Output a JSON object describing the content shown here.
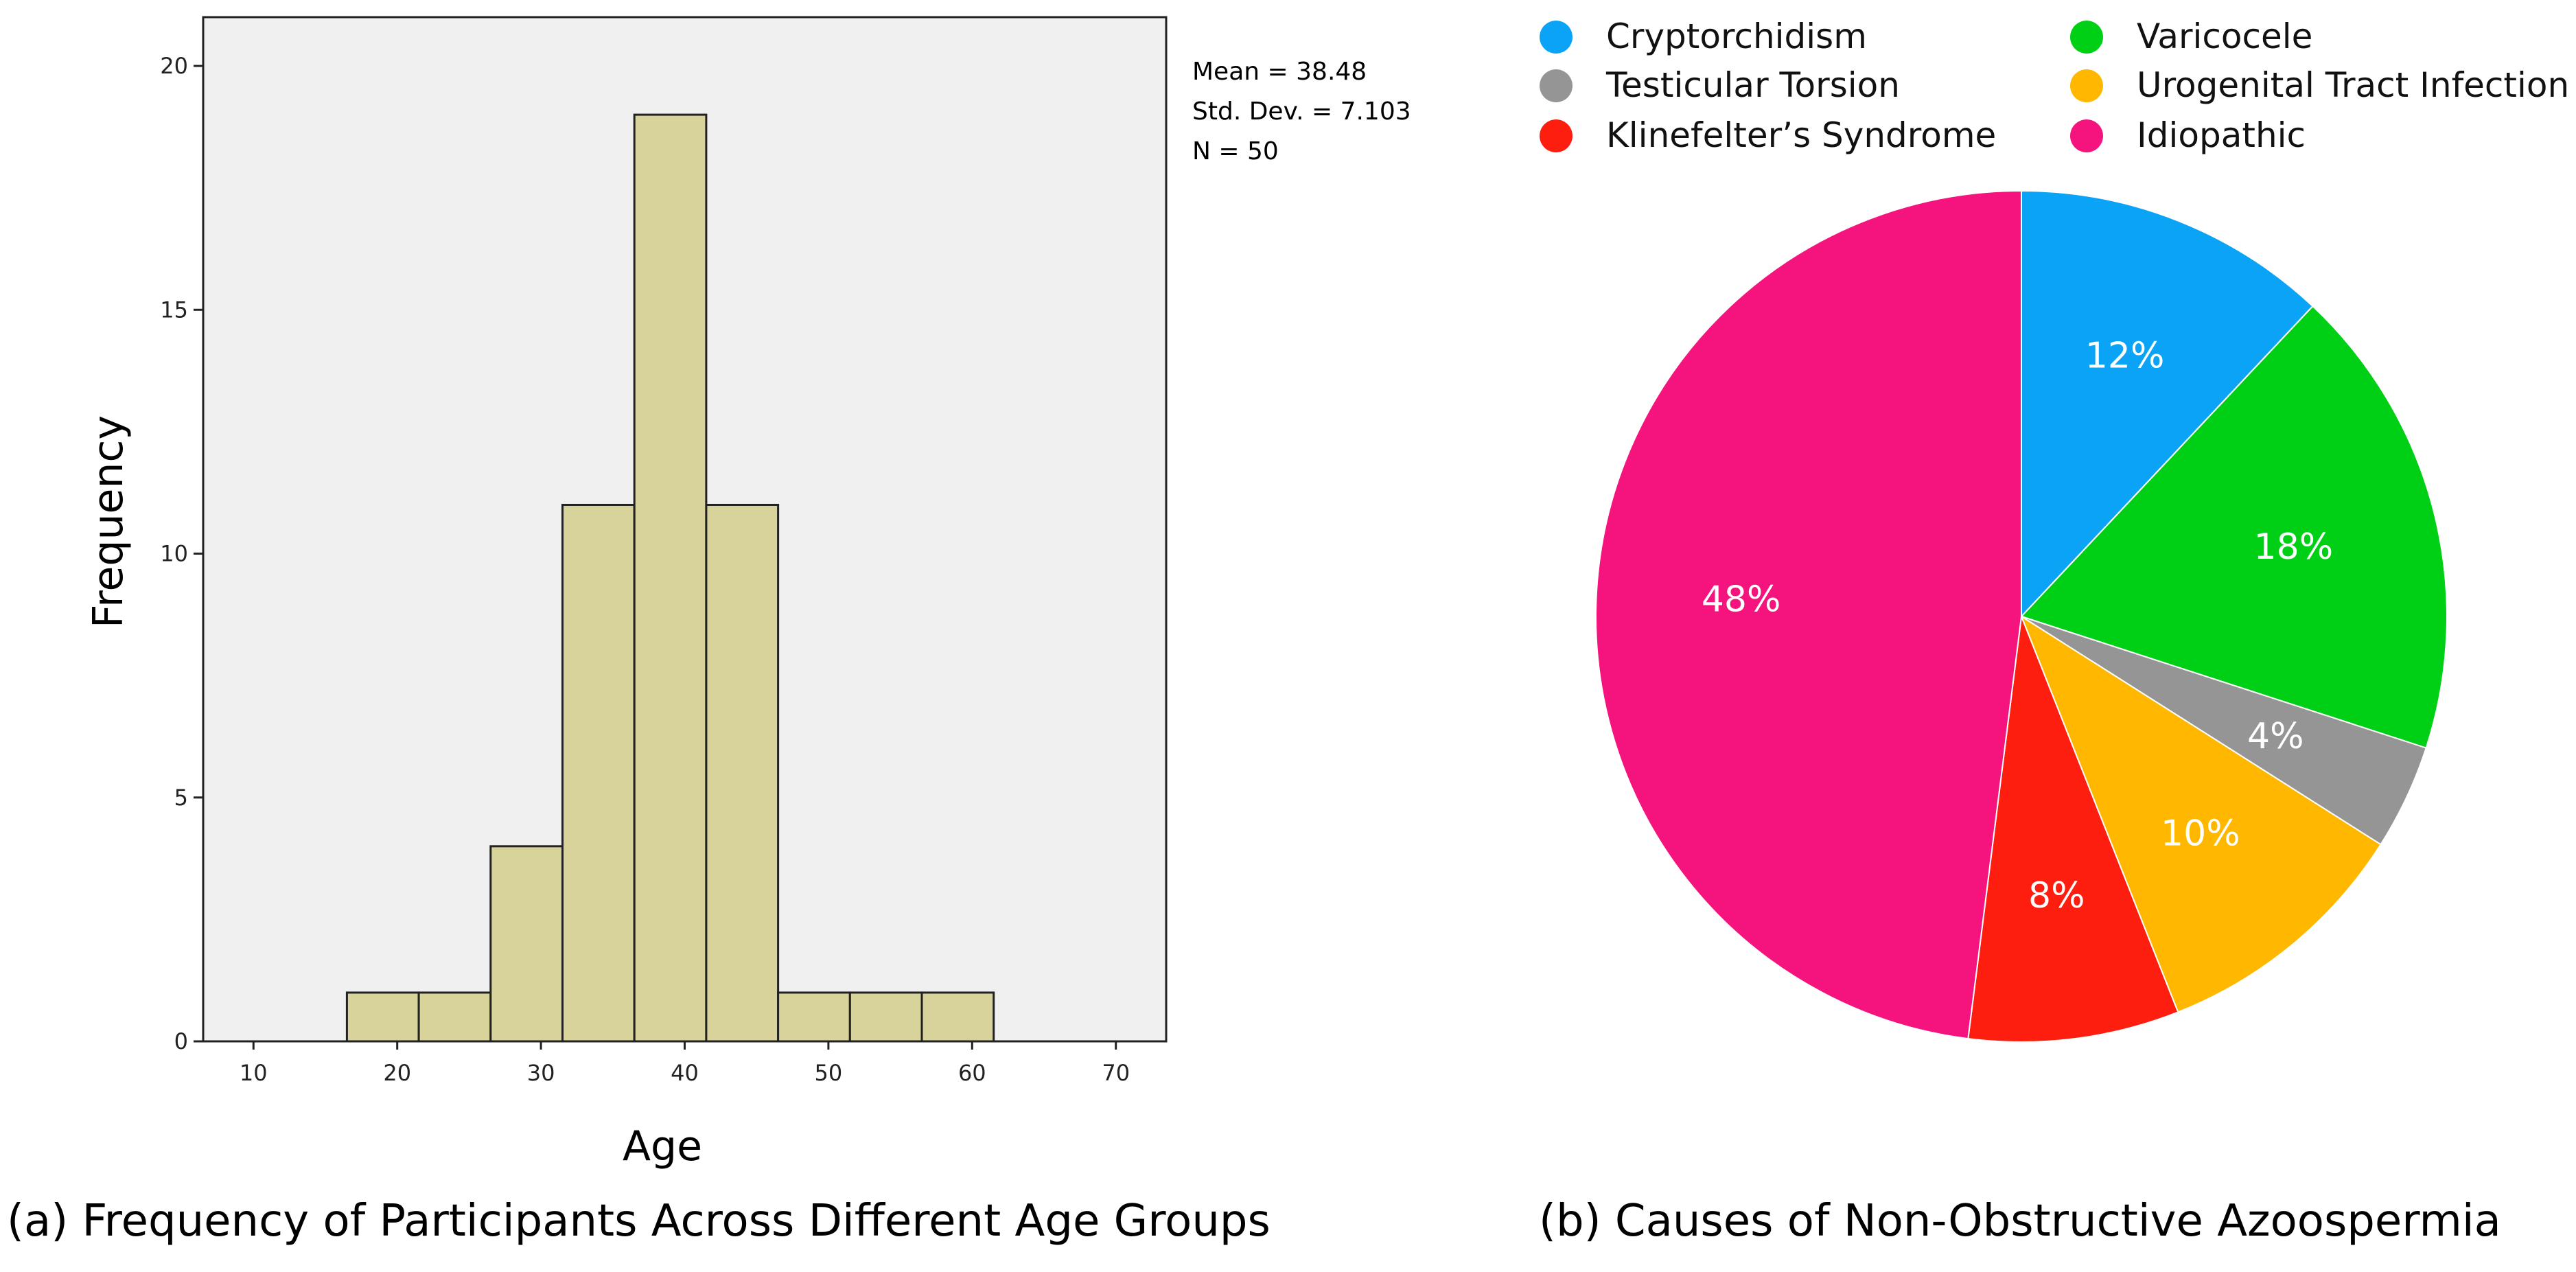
{
  "chart_data": [
    {
      "type": "bar",
      "subtype": "histogram",
      "title": "",
      "xlabel": "Age",
      "ylabel": "Frequency",
      "bin_starts": [
        16.5,
        21.5,
        26.5,
        31.5,
        36.5,
        41.5,
        46.5,
        51.5,
        56.5
      ],
      "bin_width": 5,
      "values": [
        1,
        1,
        4,
        11,
        19,
        11,
        1,
        1,
        1
      ],
      "xlim": [
        6.5,
        73.5
      ],
      "ylim": [
        0,
        21
      ],
      "xticks": [
        "10",
        "20",
        "30",
        "40",
        "50",
        "60",
        "70"
      ],
      "yticks": [
        "0",
        "5",
        "10",
        "15",
        "20"
      ],
      "stats": [
        "Mean = 38.48",
        "Std. Dev. = 7.103",
        "N = 50"
      ],
      "colors": {
        "bar": "#d8d29b",
        "plot_bg": "#f0f0f0",
        "edge": "#222222"
      },
      "caption": "(a) Frequency of Participants Across Different Age Groups"
    },
    {
      "type": "pie",
      "title": "",
      "slices": [
        {
          "label": "Cryptorchidism",
          "value": 12,
          "display": "12%",
          "color": "#0aa3f5"
        },
        {
          "label": "Varicocele",
          "value": 18,
          "display": "18%",
          "color": "#00d015"
        },
        {
          "label": "Testicular Torsion",
          "value": 4,
          "display": "4%",
          "color": "#959595"
        },
        {
          "label": "Urogenital Tract Infection",
          "value": 10,
          "display": "10%",
          "color": "#ffb700"
        },
        {
          "label": "Klinefelter’s Syndrome",
          "value": 8,
          "display": "8%",
          "color": "#fe1e10"
        },
        {
          "label": "Idiopathic",
          "value": 48,
          "display": "48%",
          "color": "#f5137d"
        }
      ],
      "legend_order": [
        "Cryptorchidism",
        "Varicocele",
        "Testicular Torsion",
        "Urogenital Tract Infection",
        "Klinefelter’s Syndrome",
        "Idiopathic"
      ],
      "legend_position": "top",
      "caption": "(b) Causes of Non-Obstructive Azoospermia"
    }
  ]
}
